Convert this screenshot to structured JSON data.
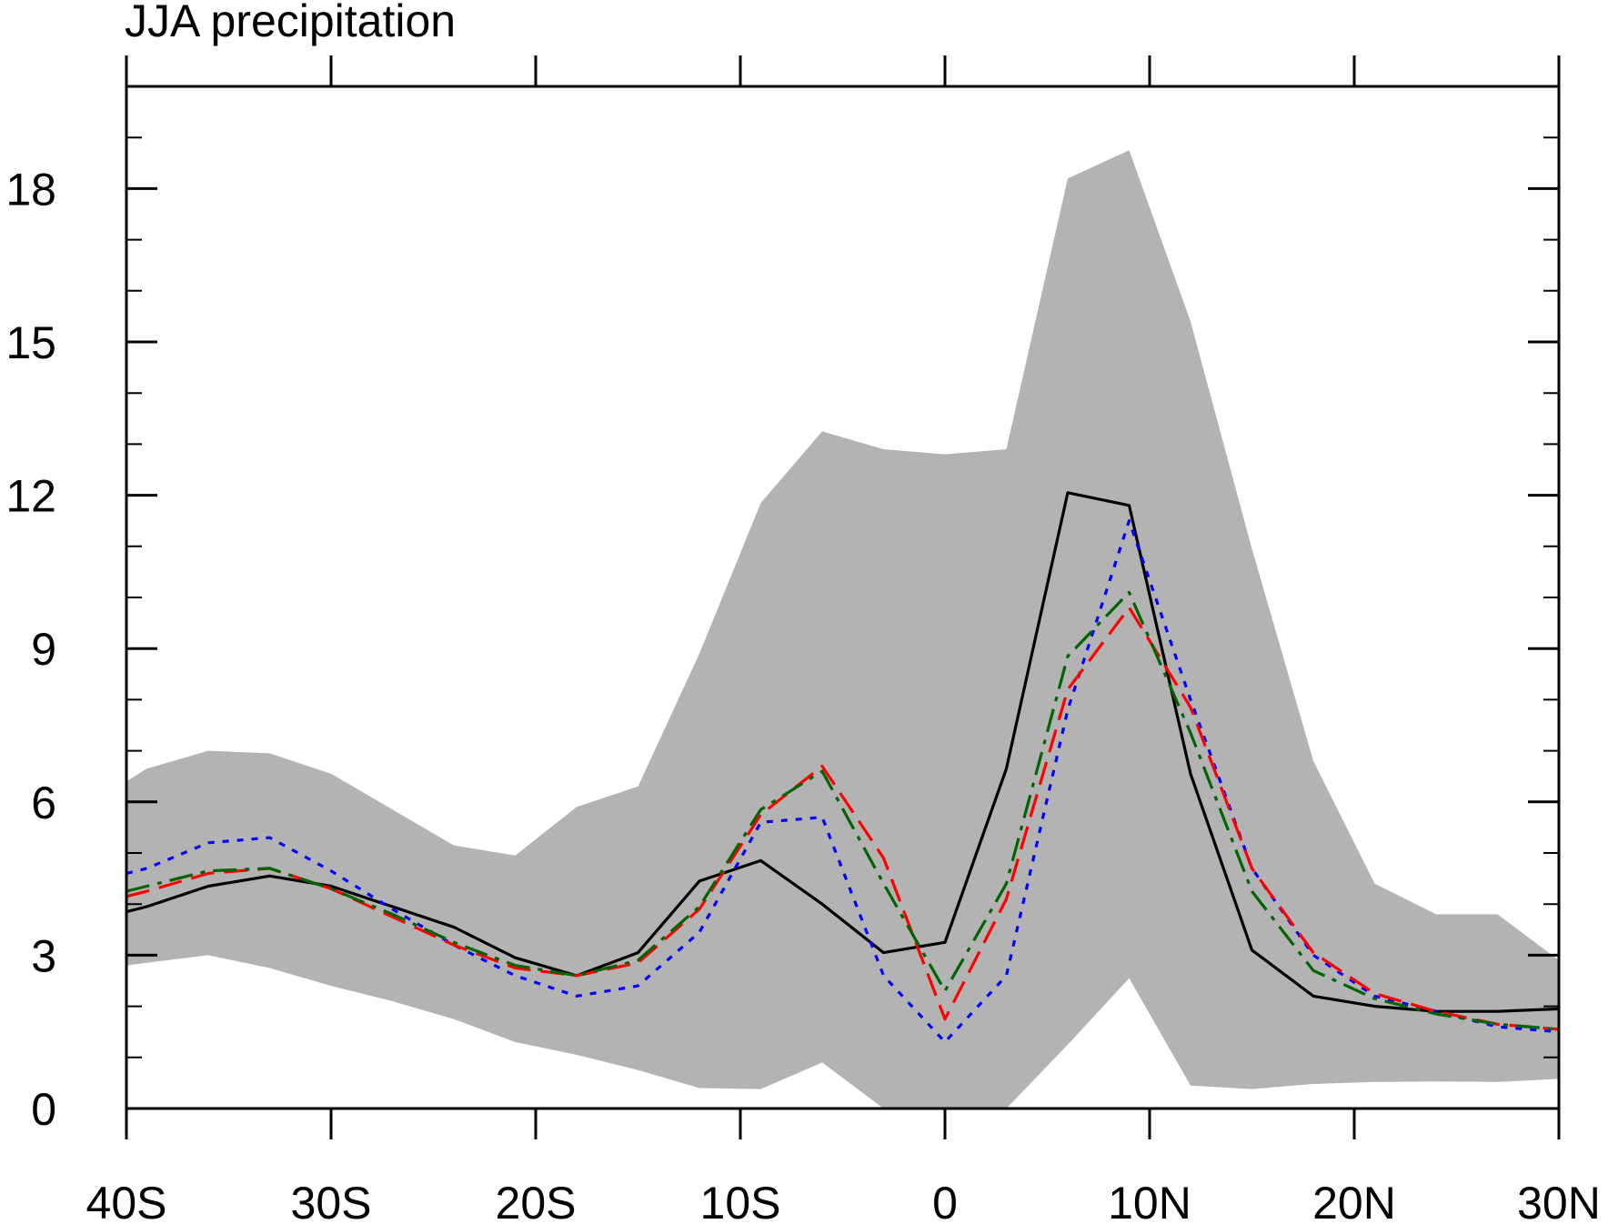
{
  "chart_data": {
    "type": "line",
    "title": "JJA precipitation",
    "xlabel": "",
    "ylabel": "",
    "xlim": [
      -40,
      30
    ],
    "ylim": [
      0,
      20
    ],
    "x_ticks": [
      -40,
      -30,
      -20,
      -10,
      0,
      10,
      20,
      30
    ],
    "x_tick_labels": [
      "40S",
      "30S",
      "20S",
      "10S",
      "0",
      "10N",
      "20N",
      "30N"
    ],
    "y_ticks": [
      0,
      3,
      6,
      9,
      12,
      15,
      18
    ],
    "y_tick_labels": [
      "0",
      "3",
      "6",
      "9",
      "12",
      "15",
      "18"
    ],
    "y_minor_step": 1,
    "grid": false,
    "latitude": [
      -40,
      -39,
      -36,
      -33,
      -30,
      -27,
      -24,
      -21,
      -18,
      -15,
      -12,
      -9,
      -6,
      -3,
      0,
      3,
      6,
      9,
      12,
      15,
      18,
      21,
      24,
      27,
      30
    ],
    "band": {
      "color": "#b3b3b3",
      "upper": [
        6.4,
        6.65,
        7.0,
        6.95,
        6.55,
        5.85,
        5.15,
        4.95,
        5.9,
        6.3,
        8.9,
        11.85,
        13.25,
        12.9,
        12.8,
        12.9,
        18.2,
        18.75,
        15.4,
        10.95,
        6.8,
        4.4,
        3.8,
        3.8,
        2.9
      ],
      "lower": [
        2.8,
        2.85,
        3.0,
        2.75,
        2.4,
        2.1,
        1.75,
        1.3,
        1.05,
        0.75,
        0.4,
        0.38,
        0.9,
        0.0,
        -0.5,
        0.0,
        1.25,
        2.55,
        0.45,
        0.38,
        0.48,
        0.52,
        0.53,
        0.52,
        0.58
      ]
    },
    "series": [
      {
        "color": "#000000",
        "dash": "solid",
        "values": [
          3.85,
          3.95,
          4.35,
          4.55,
          4.35,
          3.95,
          3.55,
          2.95,
          2.6,
          3.05,
          4.45,
          4.85,
          4.0,
          3.05,
          3.25,
          6.65,
          12.05,
          11.8,
          6.55,
          3.1,
          2.2,
          2.0,
          1.9,
          1.9,
          1.95
        ]
      },
      {
        "color": "#0000ff",
        "dash": "dot",
        "values": [
          4.6,
          4.7,
          5.2,
          5.3,
          4.65,
          3.9,
          3.2,
          2.6,
          2.2,
          2.4,
          3.45,
          5.6,
          5.7,
          2.6,
          1.3,
          2.6,
          7.8,
          11.5,
          8.0,
          4.7,
          3.0,
          2.2,
          1.9,
          1.6,
          1.5
        ]
      },
      {
        "color": "#ff0000",
        "dash": "dash",
        "values": [
          4.15,
          4.25,
          4.6,
          4.7,
          4.3,
          3.75,
          3.2,
          2.75,
          2.6,
          2.85,
          3.9,
          5.75,
          6.7,
          4.9,
          1.75,
          4.1,
          8.2,
          9.8,
          7.85,
          4.7,
          3.05,
          2.25,
          1.9,
          1.65,
          1.55
        ]
      },
      {
        "color": "#006400",
        "dash": "dashdot",
        "values": [
          4.25,
          4.35,
          4.65,
          4.7,
          4.3,
          3.8,
          3.25,
          2.8,
          2.6,
          2.9,
          3.95,
          5.85,
          6.6,
          4.4,
          2.3,
          4.4,
          8.85,
          10.1,
          7.35,
          4.25,
          2.7,
          2.15,
          1.85,
          1.65,
          1.55
        ]
      }
    ]
  }
}
